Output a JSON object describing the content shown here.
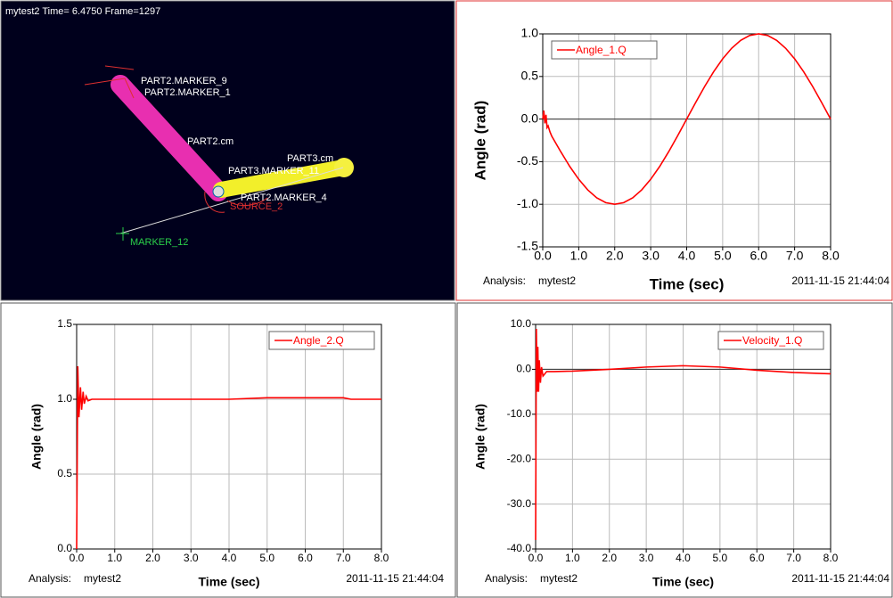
{
  "viewport": {
    "header": "mytest2   Time= 6.4750  Frame=1297",
    "labels": [
      "PART2.MARKER_9",
      "PART2.MARKER_1",
      "PART2.cm",
      "PART3.cm",
      "PART3.MARKER_11",
      "PART2.MARKER_4",
      "SOURCE_2",
      "MARKER_12"
    ]
  },
  "chart_data": [
    {
      "type": "line",
      "y_label": "Angle (rad)",
      "x_label": "Time (sec)",
      "analysis_label": "Analysis:",
      "analysis_name": "mytest2",
      "timestamp": "2011-11-15 21:44:04",
      "legend": "upper-left",
      "grid": true,
      "x": [
        0,
        0.03,
        0.06,
        0.09,
        0.12,
        0.15,
        0.2,
        0.25,
        0.5,
        0.75,
        1,
        1.25,
        1.5,
        1.75,
        2,
        2.25,
        2.5,
        2.75,
        3,
        3.25,
        3.5,
        3.75,
        4,
        4.25,
        4.5,
        4.75,
        5,
        5.25,
        5.5,
        5.75,
        6,
        6.25,
        6.5,
        6.75,
        7,
        7.25,
        7.5,
        7.75,
        8
      ],
      "series": [
        {
          "name": "Angle_1.Q",
          "color": "#ff0000",
          "values": [
            0,
            0.1,
            -0.05,
            0.05,
            -0.1,
            -0.08,
            -0.15,
            -0.2,
            -0.383,
            -0.556,
            -0.707,
            -0.831,
            -0.924,
            -0.981,
            -1,
            -0.981,
            -0.924,
            -0.831,
            -0.707,
            -0.556,
            -0.383,
            -0.195,
            0,
            0.195,
            0.383,
            0.556,
            0.707,
            0.831,
            0.924,
            0.981,
            1,
            0.981,
            0.924,
            0.831,
            0.707,
            0.556,
            0.383,
            0.195,
            0
          ]
        }
      ],
      "xlim": [
        0,
        8
      ],
      "xticks": [
        {
          "value": 0,
          "label": "0.0"
        },
        {
          "value": 1,
          "label": "1.0"
        },
        {
          "value": 2,
          "label": "2.0"
        },
        {
          "value": 3,
          "label": "3.0"
        },
        {
          "value": 4,
          "label": "4.0"
        },
        {
          "value": 5,
          "label": "5.0"
        },
        {
          "value": 6,
          "label": "6.0"
        },
        {
          "value": 7,
          "label": "7.0"
        },
        {
          "value": 8,
          "label": "8.0"
        }
      ],
      "ylim": [
        -1.5,
        1
      ],
      "yticks": [
        {
          "value": -1.5,
          "label": "-1.5"
        },
        {
          "value": -1,
          "label": "-1.0"
        },
        {
          "value": -0.5,
          "label": "-0.5"
        },
        {
          "value": 0,
          "label": "0.0"
        },
        0.5,
        {
          "value": 1,
          "label": "1.0"
        }
      ]
    },
    {
      "type": "line",
      "y_label": "Angle (rad)",
      "x_label": "Time (sec)",
      "analysis_label": "Analysis:",
      "analysis_name": "mytest2",
      "timestamp": "2011-11-15 21:44:04",
      "legend": "upper-right",
      "grid": true,
      "x": [
        0,
        0.03,
        0.06,
        0.1,
        0.13,
        0.17,
        0.2,
        0.25,
        0.3,
        0.4,
        1,
        2,
        3,
        4,
        5,
        6,
        7,
        7.2,
        8
      ],
      "series": [
        {
          "name": "Angle_2.Q",
          "color": "#ff0000",
          "values": [
            0,
            1.22,
            0.88,
            1.08,
            0.93,
            1.05,
            0.97,
            1.02,
            0.99,
            1,
            1,
            1,
            1,
            1,
            1.01,
            1.01,
            1.01,
            1,
            1
          ]
        }
      ],
      "xlim": [
        0,
        8
      ],
      "xticks": [
        {
          "value": 0,
          "label": "0.0"
        },
        {
          "value": 1,
          "label": "1.0"
        },
        {
          "value": 2,
          "label": "2.0"
        },
        {
          "value": 3,
          "label": "3.0"
        },
        {
          "value": 4,
          "label": "4.0"
        },
        {
          "value": 5,
          "label": "5.0"
        },
        {
          "value": 6,
          "label": "6.0"
        },
        {
          "value": 7,
          "label": "7.0"
        },
        {
          "value": 8,
          "label": "8.0"
        }
      ],
      "ylim": [
        0,
        1.5
      ],
      "yticks": [
        {
          "value": 0,
          "label": "0.0"
        },
        0.5,
        {
          "value": 1,
          "label": "1.0"
        },
        1.5
      ]
    },
    {
      "type": "line",
      "y_label": "Angle (rad)",
      "x_label": "Time (sec)",
      "analysis_label": "Analysis:",
      "analysis_name": "mytest2",
      "timestamp": "2011-11-15 21:44:04",
      "legend": "upper-right",
      "grid": true,
      "x": [
        0,
        0.02,
        0.04,
        0.06,
        0.08,
        0.1,
        0.13,
        0.16,
        0.2,
        0.3,
        0.5,
        1,
        2,
        3,
        4,
        5,
        6,
        7,
        8
      ],
      "series": [
        {
          "name": "Velocity_1.Q",
          "color": "#ff0000",
          "values": [
            -38,
            9,
            -5,
            5,
            -5,
            2,
            -3,
            0.5,
            -1.5,
            -0.5,
            -0.5,
            -0.4,
            0,
            0.5,
            0.8,
            0.5,
            -0.2,
            -0.7,
            -1
          ]
        }
      ],
      "xlim": [
        0,
        8
      ],
      "xticks": [
        {
          "value": 0,
          "label": "0.0"
        },
        {
          "value": 1,
          "label": "1.0"
        },
        {
          "value": 2,
          "label": "2.0"
        },
        {
          "value": 3,
          "label": "3.0"
        },
        {
          "value": 4,
          "label": "4.0"
        },
        {
          "value": 5,
          "label": "5.0"
        },
        {
          "value": 6,
          "label": "6.0"
        },
        {
          "value": 7,
          "label": "7.0"
        },
        {
          "value": 8,
          "label": "8.0"
        }
      ],
      "ylim": [
        -40,
        10
      ],
      "yticks": [
        {
          "value": -40,
          "label": "-40.0"
        },
        {
          "value": -30,
          "label": "-30.0"
        },
        {
          "value": -20,
          "label": "-20.0"
        },
        {
          "value": -10,
          "label": "-10.0"
        },
        {
          "value": 0,
          "label": "0.0"
        },
        {
          "value": 10,
          "label": "10.0"
        }
      ]
    }
  ]
}
